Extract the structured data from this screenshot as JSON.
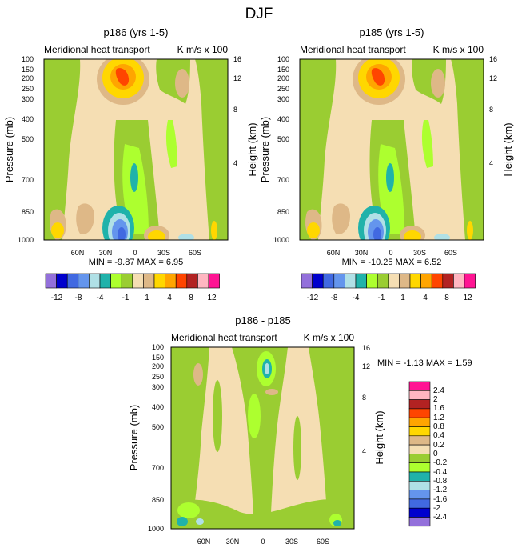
{
  "figure_title": "DJF",
  "chart_data": [
    {
      "type": "heatmap",
      "title": "p186 (yrs 1-5)",
      "subtitle_left": "Meridional heat transport",
      "subtitle_right": "K m/s x 100",
      "ylabel": "Pressure (mb)",
      "ylabel_right": "Height (km)",
      "pressure_ticks": [
        "100",
        "150",
        "200",
        "250",
        "300",
        "400",
        "500",
        "700",
        "850",
        "1000"
      ],
      "height_ticks": [
        "16",
        "12",
        "8",
        "4"
      ],
      "lat_ticks": [
        "60N",
        "30N",
        "0",
        "30S",
        "60S"
      ],
      "stats": "MIN = -9.87 MAX = 6.95",
      "colorbar_labels": [
        "-12",
        "-8",
        "-4",
        "-1",
        "1",
        "4",
        "8",
        "12"
      ]
    },
    {
      "type": "heatmap",
      "title": "p185 (yrs 1-5)",
      "subtitle_left": "Meridional heat transport",
      "subtitle_right": "K m/s x 100",
      "ylabel": "Pressure (mb)",
      "ylabel_right": "Height (km)",
      "pressure_ticks": [
        "100",
        "150",
        "200",
        "250",
        "300",
        "400",
        "500",
        "700",
        "850",
        "1000"
      ],
      "height_ticks": [
        "16",
        "12",
        "8",
        "4"
      ],
      "lat_ticks": [
        "60N",
        "30N",
        "0",
        "30S",
        "60S"
      ],
      "stats": "MIN = -10.25 MAX = 6.52",
      "colorbar_labels": [
        "-12",
        "-8",
        "-4",
        "-1",
        "1",
        "4",
        "8",
        "12"
      ]
    },
    {
      "type": "heatmap",
      "title": "p186 - p185",
      "subtitle_left": "Meridional heat transport",
      "subtitle_right": "K m/s x 100",
      "ylabel": "Pressure (mb)",
      "ylabel_right": "Height (km)",
      "pressure_ticks": [
        "100",
        "150",
        "200",
        "250",
        "300",
        "400",
        "500",
        "700",
        "850",
        "1000"
      ],
      "height_ticks": [
        "16",
        "12",
        "8",
        "4"
      ],
      "lat_ticks": [
        "60N",
        "30N",
        "0",
        "30S",
        "60S"
      ],
      "stats": "MIN = -1.13 MAX = 1.59",
      "colorbar_labels": [
        "2.4",
        "2",
        "1.6",
        "1.2",
        "0.8",
        "0.4",
        "0.2",
        "0",
        "-0.2",
        "-0.4",
        "-0.8",
        "-1.2",
        "-1.6",
        "-2",
        "-2.4"
      ]
    }
  ],
  "palette": {
    "c1": "#9370db",
    "c2": "#0000cd",
    "c3": "#4169e1",
    "c4": "#6495ed",
    "c5": "#b0e0e6",
    "c6": "#20b2aa",
    "c7": "#adff2f",
    "c8": "#9acd32",
    "c9": "#f5deb3",
    "c10": "#deb887",
    "c11": "#ffd700",
    "c12": "#ffa500",
    "c13": "#ff4500",
    "c14": "#b22222",
    "c15": "#ffb6c1",
    "c16": "#ff1493"
  }
}
